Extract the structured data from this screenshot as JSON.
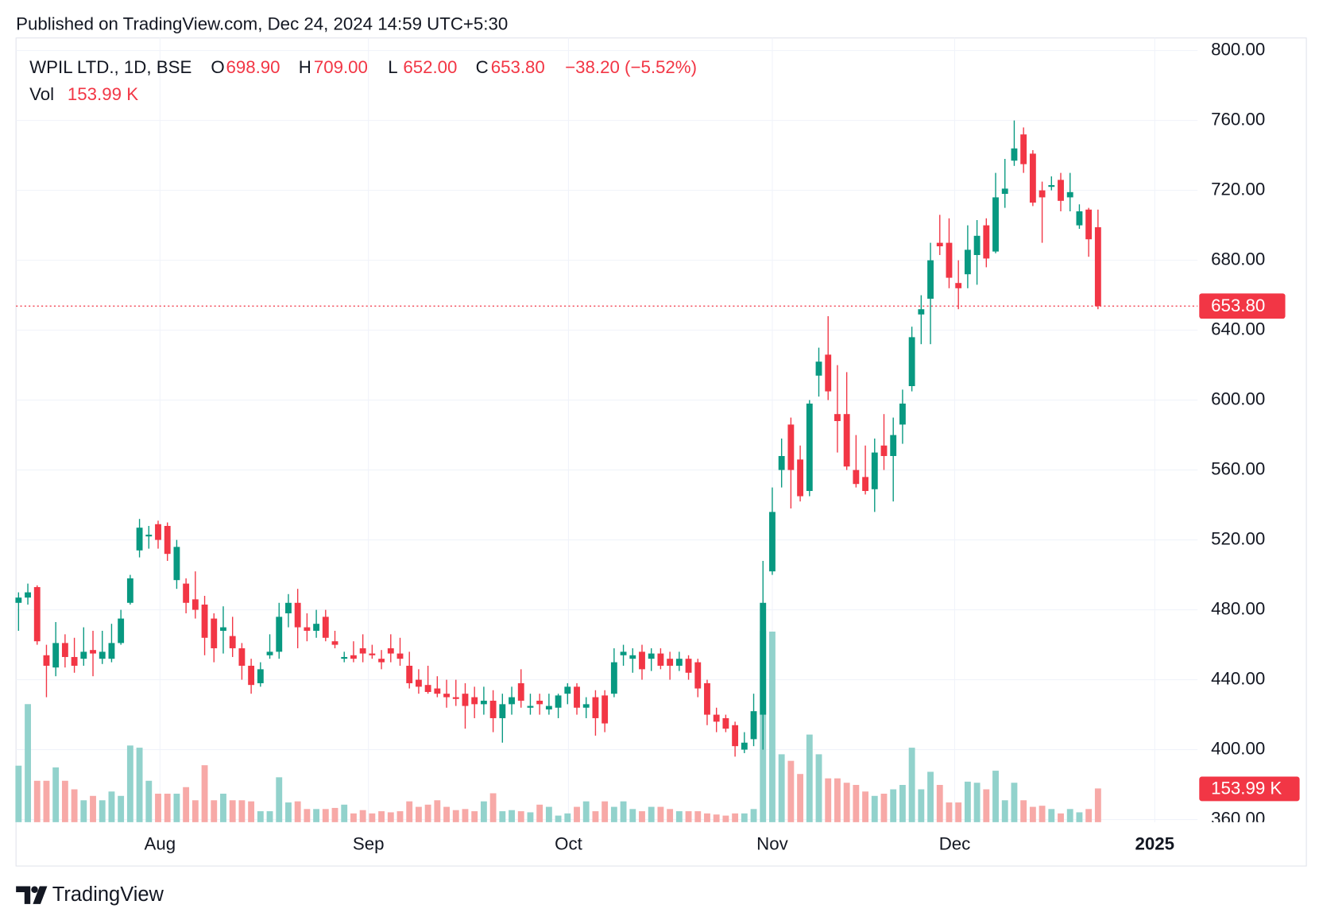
{
  "header": {
    "published": "Published on TradingView.com, Dec 24, 2024 14:59 UTC+5:30"
  },
  "footer": {
    "brand": "TradingView"
  },
  "chart_data": {
    "type": "candlestick",
    "title": "WPIL LTD., 1D, BSE",
    "legend": {
      "fields": [
        {
          "key": "O",
          "value": 698.9,
          "label": "698.90"
        },
        {
          "key": "H",
          "value": 709,
          "label": "709.00"
        },
        {
          "key": "L",
          "value": 652,
          "label": "652.00"
        },
        {
          "key": "C",
          "value": 653.8,
          "label": "653.80"
        }
      ],
      "change": "−38.20 (−5.52%)",
      "volume_key": "Vol"
    },
    "up_color": "#089981",
    "down_color": "#f23645",
    "volume_up_color": "#92d2cc",
    "volume_down_color": "#f7a9a7",
    "xlim": [
      -0.27,
      126.7
    ],
    "xticks": [
      {
        "value": 15.2,
        "label": "Aug"
      },
      {
        "value": 37.6,
        "label": "Sep"
      },
      {
        "value": 59.1,
        "label": "Oct"
      },
      {
        "value": 81,
        "label": "Nov"
      },
      {
        "value": 100.6,
        "label": "Dec"
      },
      {
        "value": 122.1,
        "label": "2025"
      }
    ],
    "ylim": [
      358.5,
      807.2
    ],
    "yticks": [
      {
        "value": 360,
        "label": "360.00"
      },
      {
        "value": 400,
        "label": "400.00"
      },
      {
        "value": 440,
        "label": "440.00"
      },
      {
        "value": 480,
        "label": "480.00"
      },
      {
        "value": 520,
        "label": "520.00"
      },
      {
        "value": 560,
        "label": "560.00"
      },
      {
        "value": 600,
        "label": "600.00"
      },
      {
        "value": 640,
        "label": "640.00"
      },
      {
        "value": 680,
        "label": "680.00"
      },
      {
        "value": 720,
        "label": "720.00"
      },
      {
        "value": 760,
        "label": "760.00"
      },
      {
        "value": 800,
        "label": "800.00"
      }
    ],
    "grid": true,
    "last_price": {
      "value": 653.8,
      "label": "653.80"
    },
    "volume_lim": [
      0,
      1200
    ],
    "volume_last": {
      "value": 153.99,
      "label": "153.99 K"
    },
    "open": [
      484,
      487,
      493,
      454,
      447,
      461,
      453,
      452,
      457,
      452,
      452,
      461,
      484,
      514,
      522,
      529,
      528,
      497,
      495,
      486,
      483,
      475,
      468,
      465,
      458,
      448,
      438,
      454,
      456,
      478,
      484,
      470,
      468,
      476,
      462,
      452,
      454,
      458,
      455,
      452,
      458,
      455,
      448,
      440,
      437,
      435,
      432,
      430,
      432,
      430,
      426,
      428,
      418,
      426,
      438,
      424,
      428,
      423,
      424,
      432,
      436,
      424,
      430,
      431,
      432,
      454,
      452,
      456,
      452,
      455,
      452,
      448,
      452,
      450,
      438,
      420,
      418,
      414,
      400,
      406,
      420,
      502,
      560,
      586,
      566,
      548,
      614,
      626,
      592,
      592,
      560,
      556,
      549,
      574,
      568,
      586,
      608,
      649,
      658,
      690,
      690,
      667,
      672,
      683,
      700,
      685,
      718,
      737,
      752,
      741,
      720,
      722,
      726,
      716,
      700,
      709,
      698.9
    ],
    "high": [
      490,
      495,
      494,
      460,
      473,
      466,
      464,
      470,
      468,
      468,
      472,
      480,
      500,
      532,
      528,
      531,
      530,
      520,
      498,
      502,
      488,
      478,
      482,
      476,
      461,
      452,
      450,
      466,
      484,
      489,
      492,
      478,
      480,
      480,
      468,
      456,
      462,
      466,
      460,
      457,
      466,
      464,
      456,
      446,
      448,
      442,
      440,
      440,
      438,
      436,
      436,
      434,
      432,
      436,
      446,
      432,
      432,
      432,
      432,
      438,
      438,
      430,
      434,
      434,
      458,
      460,
      458,
      460,
      458,
      458,
      456,
      456,
      454,
      452,
      440,
      424,
      420,
      416,
      410,
      432,
      508,
      550,
      578,
      590,
      574,
      600,
      630,
      648,
      620,
      616,
      580,
      574,
      578,
      592,
      590,
      606,
      642,
      660,
      690,
      706,
      704,
      680,
      700,
      703,
      704,
      730,
      738,
      760,
      756,
      743,
      725,
      728,
      730,
      730,
      712,
      710,
      709
    ],
    "low": [
      468,
      483,
      460,
      430,
      442,
      447,
      444,
      448,
      442,
      449,
      450,
      460,
      483,
      510,
      515,
      515,
      508,
      492,
      478,
      475,
      454,
      450,
      455,
      453,
      440,
      432,
      436,
      452,
      452,
      470,
      458,
      462,
      464,
      462,
      458,
      450,
      450,
      450,
      452,
      446,
      450,
      448,
      435,
      432,
      432,
      430,
      424,
      425,
      412,
      418,
      420,
      410,
      404,
      420,
      424,
      420,
      420,
      420,
      418,
      426,
      420,
      418,
      408,
      410,
      430,
      448,
      444,
      440,
      445,
      446,
      440,
      445,
      440,
      430,
      414,
      410,
      410,
      396,
      398,
      402,
      400,
      500,
      550,
      538,
      542,
      545,
      602,
      600,
      570,
      560,
      550,
      546,
      536,
      560,
      542,
      575,
      605,
      632,
      632,
      683,
      664,
      652,
      664,
      666,
      676,
      684,
      710,
      734,
      730,
      711,
      690,
      720,
      708,
      708,
      698,
      682,
      652
    ],
    "close": [
      487,
      490,
      462,
      448,
      461,
      453,
      448,
      456,
      455,
      456,
      461,
      475,
      498,
      527,
      523,
      520,
      512,
      516,
      484,
      480,
      464,
      458,
      470,
      458,
      448,
      437,
      446,
      456,
      476,
      484,
      470,
      468,
      472,
      464,
      460,
      453,
      452,
      455,
      454,
      450,
      455,
      452,
      438,
      436,
      433,
      432,
      430,
      429,
      425,
      426,
      428,
      418,
      426,
      430,
      428,
      425,
      426,
      425,
      431,
      436,
      424,
      426,
      418,
      415,
      450,
      456,
      454,
      446,
      455,
      448,
      448,
      452,
      444,
      435,
      420,
      416,
      412,
      402,
      404,
      422,
      484,
      536,
      568,
      560,
      545,
      598,
      622,
      605,
      588,
      562,
      552,
      548,
      570,
      568,
      580,
      598,
      636,
      652,
      680,
      688,
      670,
      664,
      686,
      694,
      681,
      716,
      721,
      744,
      735,
      713,
      716,
      723,
      714,
      719,
      708,
      692,
      653.8
    ],
    "volume": [
      258,
      539,
      189,
      189,
      250,
      189,
      150,
      100,
      120,
      100,
      140,
      120,
      350,
      340,
      189,
      130,
      130,
      130,
      160,
      100,
      260,
      100,
      130,
      100,
      100,
      95,
      50,
      50,
      205,
      90,
      95,
      60,
      60,
      60,
      65,
      80,
      40,
      55,
      40,
      50,
      45,
      50,
      95,
      70,
      80,
      100,
      70,
      55,
      60,
      50,
      95,
      132,
      50,
      55,
      50,
      45,
      80,
      70,
      30,
      40,
      70,
      95,
      50,
      95,
      70,
      95,
      60,
      50,
      70,
      70,
      60,
      50,
      50,
      50,
      40,
      35,
      30,
      40,
      40,
      60,
      874,
      870,
      310,
      280,
      220,
      400,
      310,
      200,
      200,
      180,
      170,
      140,
      120,
      130,
      150,
      170,
      340,
      150,
      230,
      170,
      90,
      90,
      185,
      180,
      150,
      235,
      100,
      180,
      100,
      70,
      75,
      60,
      40,
      60,
      45,
      60,
      153.99
    ]
  }
}
